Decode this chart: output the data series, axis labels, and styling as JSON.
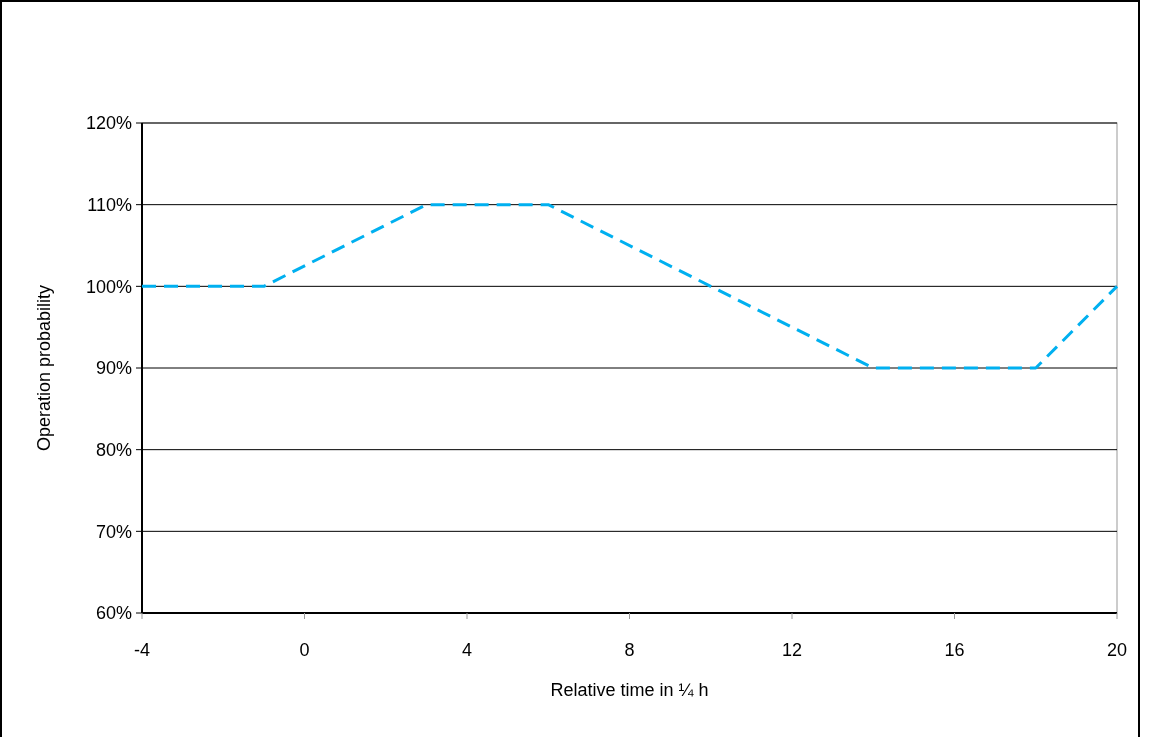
{
  "chart_data": {
    "type": "line",
    "xlabel": "Relative time in ¼ h",
    "ylabel": "Operation probability",
    "x": [
      -4,
      -1,
      3,
      6,
      14,
      18,
      20
    ],
    "series": [
      {
        "color": "#00b0f0",
        "values": [
          100,
          100,
          110,
          110,
          90,
          90,
          100
        ]
      }
    ],
    "xlim": [
      -4,
      20
    ],
    "xticks": [
      -4,
      0,
      4,
      8,
      12,
      16,
      20
    ],
    "ylim": [
      60,
      120
    ],
    "yticks": [
      {
        "value": 60,
        "label": "60%"
      },
      {
        "value": 70,
        "label": "70%"
      },
      {
        "value": 80,
        "label": "80%"
      },
      {
        "value": 90,
        "label": "90%"
      },
      {
        "value": 100,
        "label": "100%"
      },
      {
        "value": 110,
        "label": "110%"
      },
      {
        "value": 120,
        "label": "120%"
      }
    ],
    "grid": "y",
    "marker": "none",
    "line_style": "dashed"
  }
}
